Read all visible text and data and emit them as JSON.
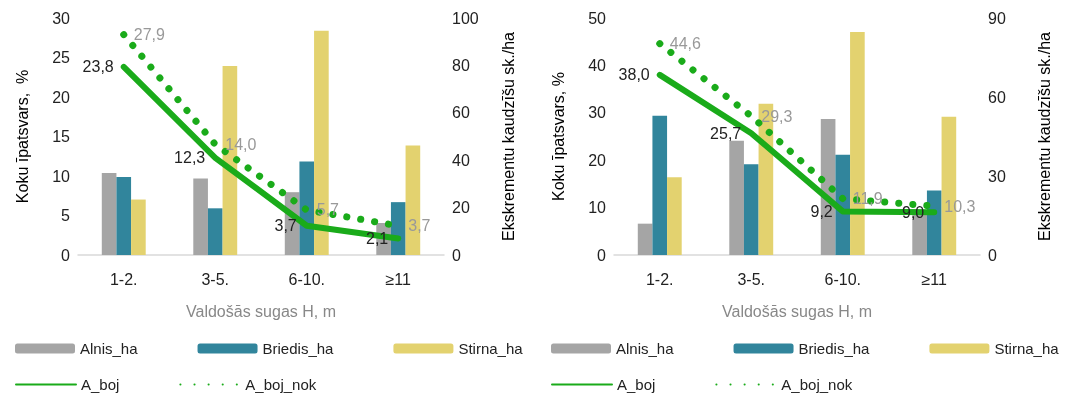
{
  "chart_data": [
    {
      "type": "bar",
      "ylabel": "Koku īpatsvars,  %",
      "y2label": "Ekskrementu kaudzīšu sk./ha",
      "xlabel": "Valdošās sugas H, m",
      "categories": [
        "1-2.",
        "3-5.",
        "6-10.",
        "≥11"
      ],
      "ylim": [
        0,
        30
      ],
      "yticks": [
        0,
        5,
        10,
        15,
        20,
        25,
        30
      ],
      "y2lim": [
        0,
        100
      ],
      "y2ticks": [
        0,
        20,
        40,
        60,
        80,
        100
      ],
      "grid": false,
      "legend": "bottom",
      "marker": "none",
      "series": [
        {
          "name": "Alnis_ha",
          "axis": "y2",
          "color": "#a5a5a5",
          "values": [
            34.6,
            32.3,
            26.5,
            13.5
          ]
        },
        {
          "name": "Briedis_ha",
          "axis": "y2",
          "color": "#31859c",
          "values": [
            32.9,
            19.7,
            39.5,
            22.3
          ]
        },
        {
          "name": "Stirna_ha",
          "axis": "y2",
          "color": "#e3d26f",
          "values": [
            23.4,
            79.7,
            94.6,
            46.2
          ]
        },
        {
          "name": "A_boj",
          "type": "line",
          "color": "#1aab1a",
          "line_style": "solid",
          "values": [
            23.8,
            12.3,
            3.7,
            2.1
          ],
          "value_labels": [
            "23,8",
            "12,3",
            "3,7",
            "2,1"
          ]
        },
        {
          "name": "A_boj_nok",
          "type": "line",
          "color": "#1aab1a",
          "line_style": "dotted",
          "values": [
            27.9,
            14.0,
            5.7,
            3.7
          ],
          "value_labels": [
            "27,9",
            "14,0",
            "5,7",
            "3,7"
          ]
        }
      ]
    },
    {
      "type": "bar",
      "ylabel": "Koku īpatsvars, %",
      "y2label": "Ekskrementu kaudzīšu sk./ha",
      "xlabel": "Valdošās sugas H, m",
      "categories": [
        "1-2.",
        "3-5.",
        "6-10.",
        "≥11"
      ],
      "ylim": [
        0,
        50
      ],
      "yticks": [
        0,
        10,
        20,
        30,
        40,
        50
      ],
      "y2lim": [
        0,
        90
      ],
      "y2ticks": [
        0,
        30,
        60,
        90
      ],
      "grid": false,
      "legend": "bottom",
      "marker": "none",
      "series": [
        {
          "name": "Alnis_ha",
          "axis": "y2",
          "color": "#a5a5a5",
          "values": [
            11.9,
            43.4,
            51.6,
            15.6
          ]
        },
        {
          "name": "Briedis_ha",
          "axis": "y2",
          "color": "#31859c",
          "values": [
            52.9,
            34.5,
            38.1,
            24.5
          ]
        },
        {
          "name": "Stirna_ha",
          "axis": "y2",
          "color": "#e3d26f",
          "values": [
            29.5,
            57.4,
            84.7,
            52.5
          ]
        },
        {
          "name": "A_boj",
          "type": "line",
          "color": "#1aab1a",
          "line_style": "solid",
          "values": [
            38.0,
            25.7,
            9.2,
            9.0
          ],
          "value_labels": [
            "38,0",
            "25,7",
            "9,2",
            "9,0"
          ]
        },
        {
          "name": "A_boj_nok",
          "type": "line",
          "color": "#1aab1a",
          "line_style": "dotted",
          "values": [
            44.6,
            29.3,
            11.9,
            10.3
          ],
          "value_labels": [
            "44,6",
            "29,3",
            "11,9",
            "10,3"
          ]
        }
      ]
    }
  ]
}
